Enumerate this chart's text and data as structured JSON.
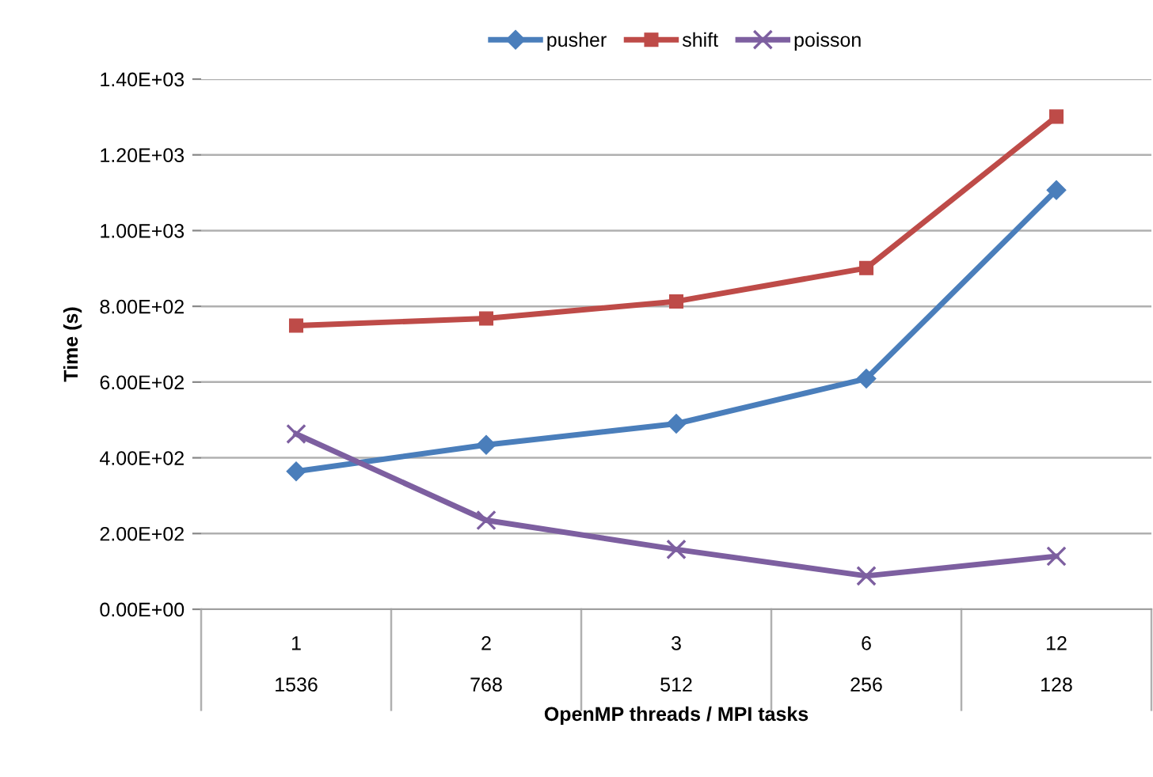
{
  "chart_data": {
    "type": "line",
    "xlabel": "OpenMP threads / MPI tasks",
    "ylabel": "Time (s)",
    "categories": [
      "1\n1536",
      "2\n768",
      "3\n512",
      "6\n256",
      "12\n128"
    ],
    "series": [
      {
        "name": "pusher",
        "color": "#4a7ebb",
        "marker": "diamond",
        "values": [
          364,
          434,
          490,
          609,
          1107
        ]
      },
      {
        "name": "shift",
        "color": "#be4b48",
        "marker": "square",
        "values": [
          749,
          768,
          813,
          901,
          1301
        ]
      },
      {
        "name": "poisson",
        "color": "#7d5fa0",
        "marker": "cross",
        "values": [
          463,
          235,
          158,
          88,
          140
        ]
      }
    ],
    "ylim": [
      0,
      1400
    ],
    "yticks": [
      {
        "value": 0,
        "label": "0.00E+00"
      },
      {
        "value": 200,
        "label": "2.00E+02"
      },
      {
        "value": 400,
        "label": "4.00E+02"
      },
      {
        "value": 600,
        "label": "6.00E+02"
      },
      {
        "value": 800,
        "label": "8.00E+02"
      },
      {
        "value": 1000,
        "label": "1.00E+03"
      },
      {
        "value": 1200,
        "label": "1.20E+03"
      },
      {
        "value": 1400,
        "label": "1.40E+03"
      }
    ],
    "grid": "y",
    "legend": "top"
  }
}
